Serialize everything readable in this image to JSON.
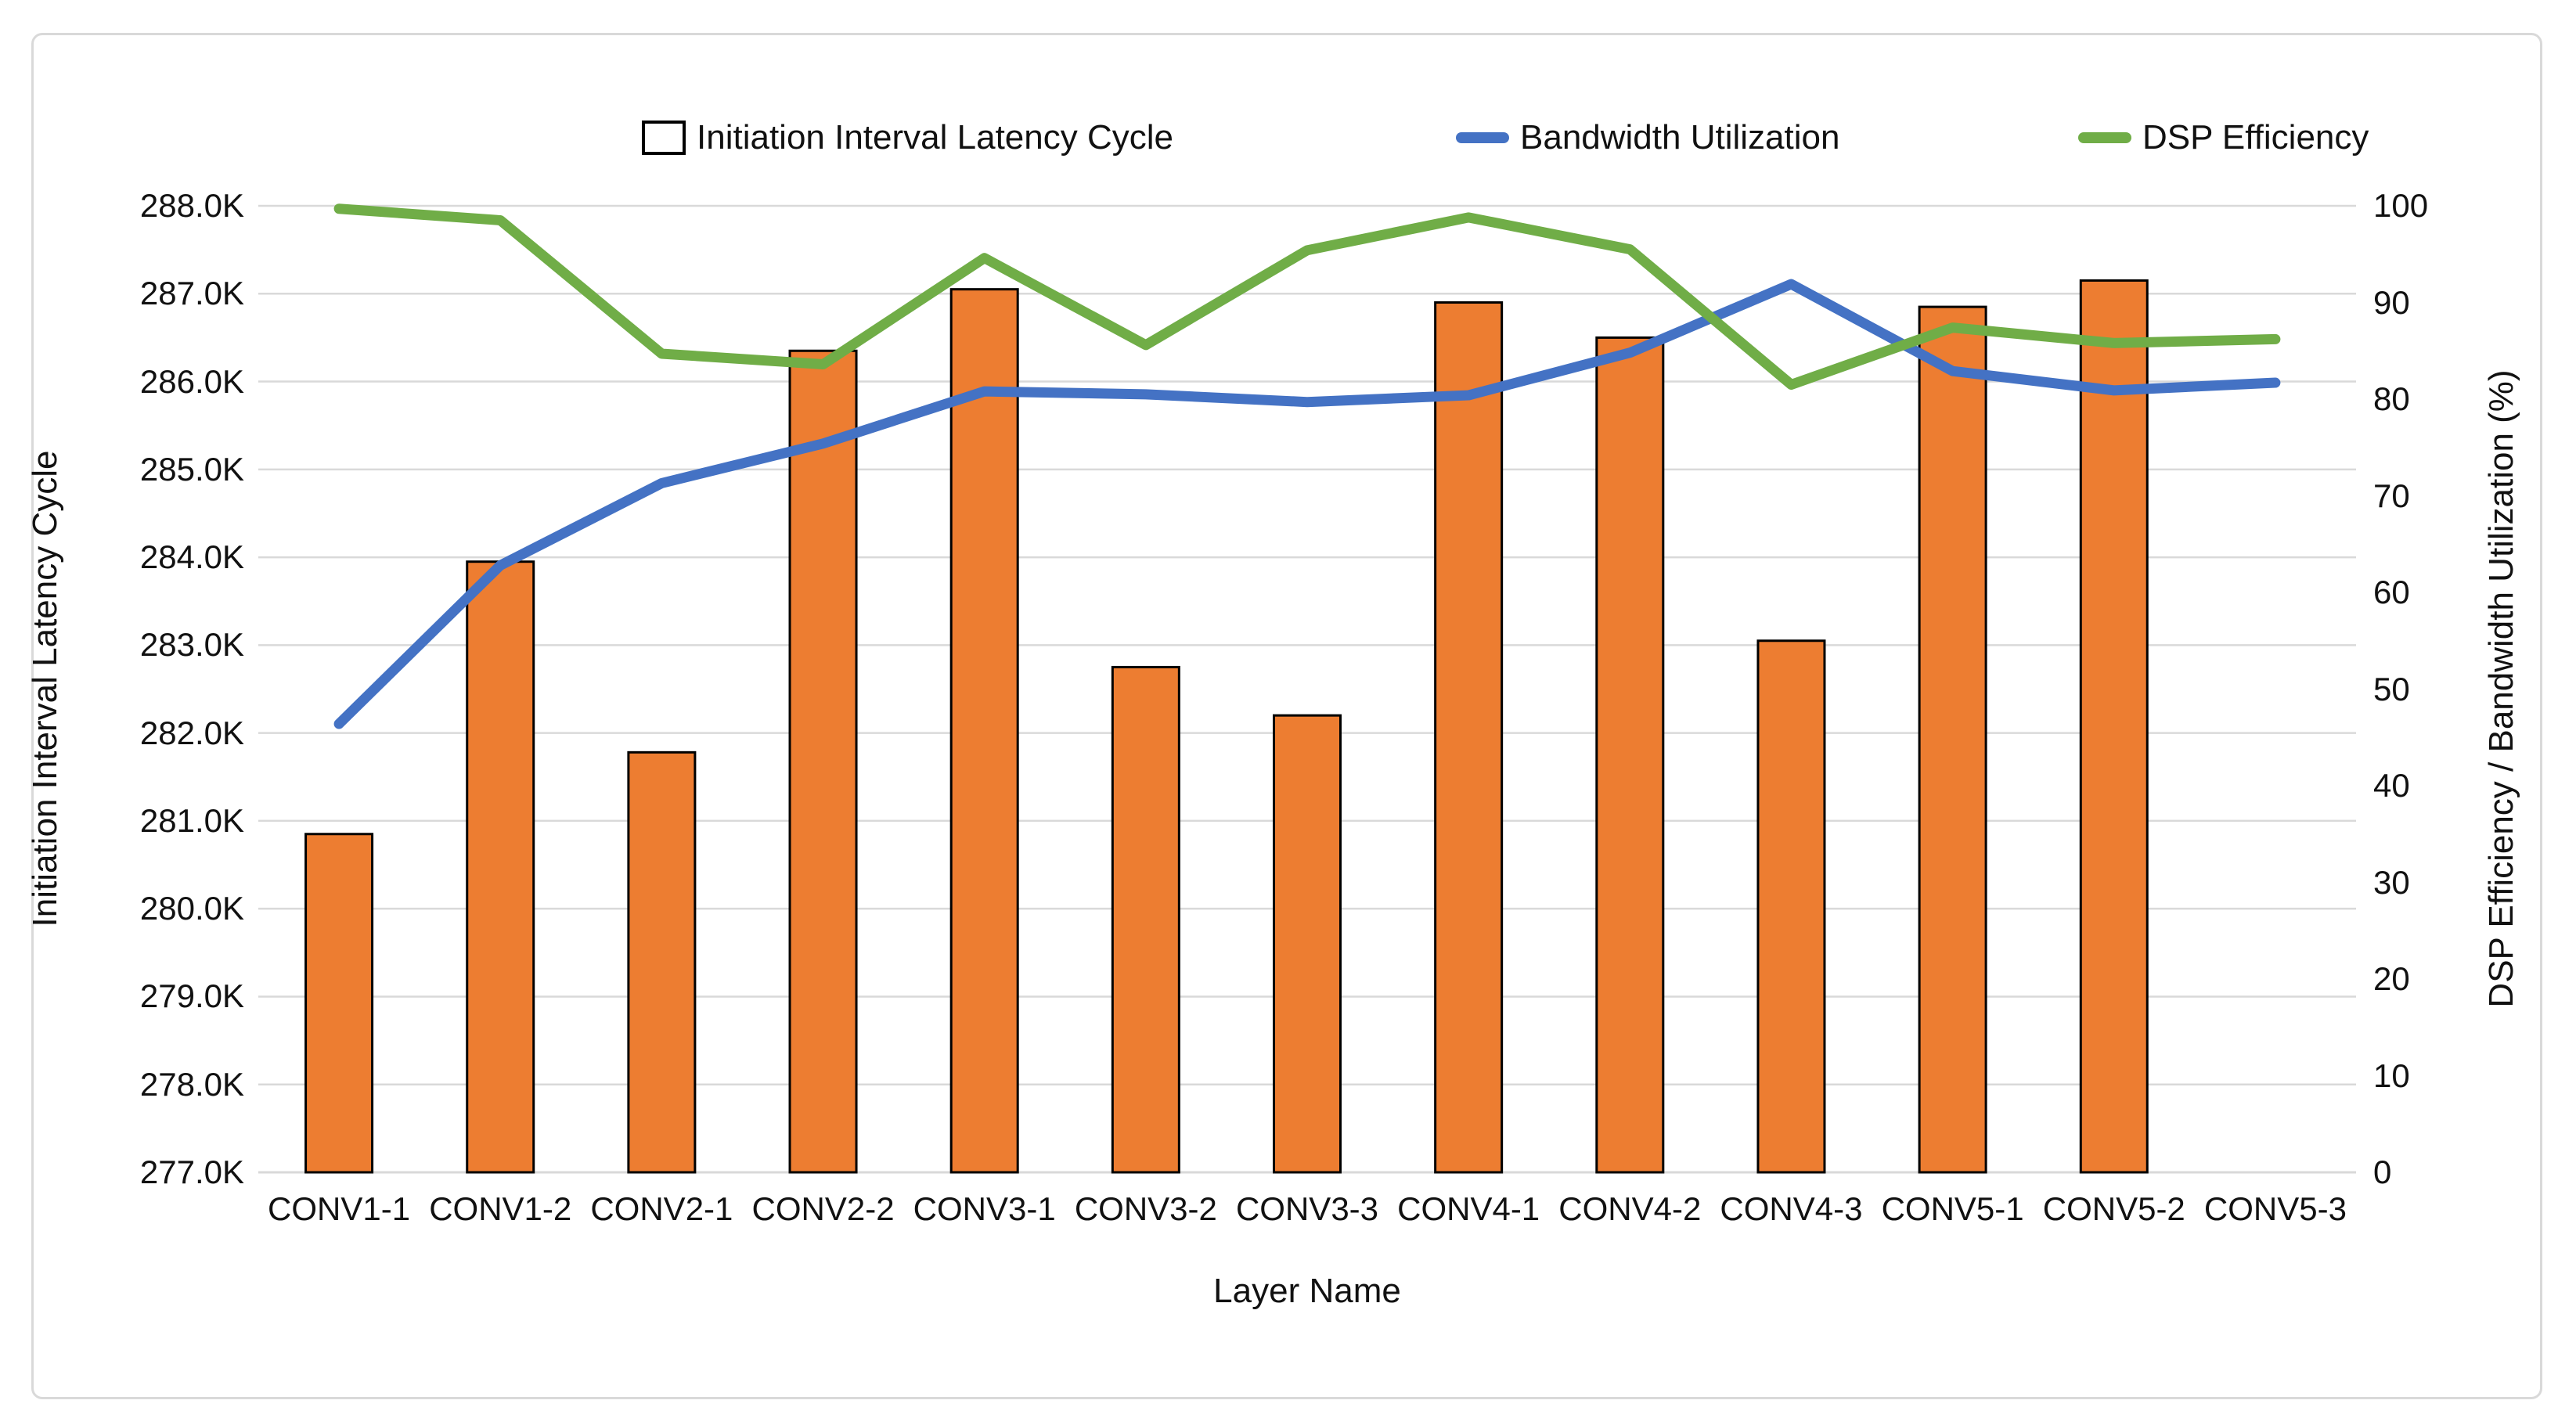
{
  "chart_data": {
    "type": "combo",
    "categories": [
      "CONV1-1",
      "CONV1-2",
      "CONV2-1",
      "CONV2-2",
      "CONV3-1",
      "CONV3-2",
      "CONV3-3",
      "CONV4-1",
      "CONV4-2",
      "CONV4-3",
      "CONV5-1",
      "CONV5-2",
      "CONV5-3"
    ],
    "series": [
      {
        "name": "Initiation Interval Latency Cycle",
        "type": "bar",
        "axis": "left",
        "color": "#ED7D31",
        "border_color": "#000000",
        "values": [
          280850,
          283950,
          281780,
          286350,
          287050,
          282750,
          282200,
          286900,
          286500,
          283050,
          286850,
          287150,
          null
        ]
      },
      {
        "name": "Bandwidth Utilization",
        "type": "line",
        "axis": "right",
        "color": "#4472C4",
        "values": [
          46.4,
          62.8,
          71.3,
          75.4,
          80.8,
          80.5,
          79.7,
          80.4,
          84.8,
          91.9,
          82.9,
          80.9,
          81.7
        ]
      },
      {
        "name": "DSP Efficiency",
        "type": "line",
        "axis": "right",
        "color": "#70AD47",
        "values": [
          99.7,
          98.5,
          84.7,
          83.6,
          94.6,
          85.6,
          95.4,
          98.8,
          95.5,
          81.5,
          87.4,
          85.8,
          86.2
        ]
      }
    ],
    "left_axis": {
      "title": "Initiation Interval Latency Cycle",
      "min": 277000,
      "max": 288000,
      "step": 1000,
      "tick_labels": [
        "277.0K",
        "278.0K",
        "279.0K",
        "280.0K",
        "281.0K",
        "282.0K",
        "283.0K",
        "284.0K",
        "285.0K",
        "286.0K",
        "287.0K",
        "288.0K"
      ]
    },
    "right_axis": {
      "title": "DSP Efficiency / Bandwidth Utilization (%)",
      "min": 0,
      "max": 100,
      "step": 10,
      "tick_labels": [
        "0",
        "10",
        "20",
        "30",
        "40",
        "50",
        "60",
        "70",
        "80",
        "90",
        "100"
      ]
    },
    "x_axis": {
      "title": "Layer Name"
    },
    "legend_position": "top",
    "grid": true,
    "colors": {
      "grid": "#D9D9D9",
      "axis_line": "#D9D9D9",
      "text": "#111111",
      "background": "#FFFFFF",
      "frame_border": "#D9D9D9"
    }
  }
}
